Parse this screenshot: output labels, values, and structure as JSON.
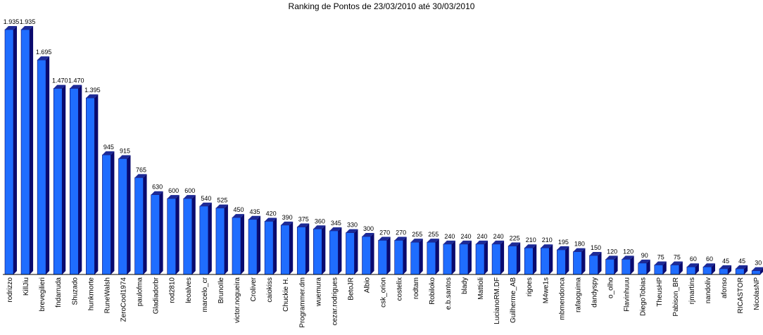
{
  "chart_data": {
    "type": "bar",
    "title": "Ranking de Pontos de 23/03/2010 até 30/03/2010",
    "xlabel": "",
    "ylabel": "",
    "ylim": [
      0,
      1935
    ],
    "grid": false,
    "legend": "none",
    "categories": [
      "rodrizzo",
      "KillJiu",
      "brevegilieri",
      "fndarruda",
      "Shuzado",
      "hunkmorte",
      "RuneWalsh",
      "ZeroCool1974",
      "paulofma",
      "Gladiadorbr",
      "rod2810",
      "leoalves",
      "marcelo_cr",
      "BrunoIle",
      "victor.nogueira",
      "Croliver",
      "caiokiss",
      "Chuckie H.",
      "Programmer.dm",
      "wuemura",
      "cezar.rodrigues",
      "BetoJR",
      "Albio",
      "csk_orion",
      "costelix",
      "rodtam",
      "Robiloko",
      "e.b.santos",
      "blady",
      "Mattioli",
      "LucianoRM.DF",
      "Guilherme_AB",
      "rigoes",
      "M4we1s",
      "mbmendonca",
      "rafaoguima",
      "dandyspy",
      "o_olho",
      "Flavinhuuu",
      "DiegoTobias",
      "TheusHP",
      "Pabison_BR",
      "rjmartins",
      "nandoliv",
      "afonso",
      "RICASTOR",
      "NicolasNP"
    ],
    "values": [
      1935,
      1935,
      1695,
      1470,
      1470,
      1395,
      945,
      915,
      765,
      630,
      600,
      600,
      540,
      525,
      450,
      435,
      420,
      390,
      375,
      360,
      345,
      330,
      300,
      270,
      270,
      255,
      255,
      240,
      240,
      240,
      240,
      225,
      210,
      210,
      195,
      180,
      150,
      120,
      120,
      90,
      75,
      75,
      60,
      60,
      45,
      45,
      30
    ],
    "value_labels": [
      "1.935",
      "1.935",
      "1.695",
      "1.470",
      "1.470",
      "1.395",
      "945",
      "915",
      "765",
      "630",
      "600",
      "600",
      "540",
      "525",
      "450",
      "435",
      "420",
      "390",
      "375",
      "360",
      "345",
      "330",
      "300",
      "270",
      "270",
      "255",
      "255",
      "240",
      "240",
      "240",
      "240",
      "225",
      "210",
      "210",
      "195",
      "180",
      "150",
      "120",
      "120",
      "90",
      "75",
      "75",
      "60",
      "60",
      "45",
      "45",
      "30"
    ],
    "colors": {
      "bar_front": "#1f6dff",
      "bar_top": "#1d2a96",
      "bar_side": "#0a0a6e",
      "axis": "#000000"
    }
  }
}
